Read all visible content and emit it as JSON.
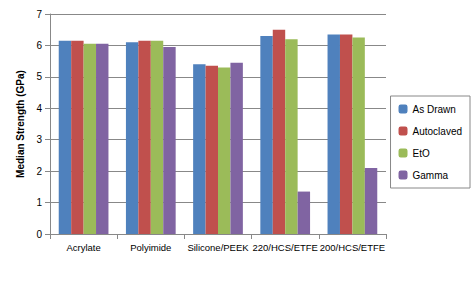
{
  "chart_data": {
    "type": "bar",
    "y_label": "Median Strength (GPa)",
    "categories": [
      "Acrylate",
      "Polyimide",
      "Silicone/PEEK",
      "220/HCS/ETFE",
      "200/HCS/ETFE"
    ],
    "series": [
      {
        "name": "As Drawn",
        "color": "#4f81bd",
        "values": [
          6.15,
          6.1,
          5.4,
          6.3,
          6.35
        ]
      },
      {
        "name": "Autoclaved",
        "color": "#c0504d",
        "values": [
          6.15,
          6.15,
          5.35,
          6.5,
          6.35
        ]
      },
      {
        "name": "EtO",
        "color": "#9bbb59",
        "values": [
          6.05,
          6.15,
          5.3,
          6.2,
          6.25
        ]
      },
      {
        "name": "Gamma",
        "color": "#8064a2",
        "values": [
          6.05,
          5.95,
          5.45,
          1.35,
          2.1
        ]
      }
    ],
    "ylim": [
      0,
      7
    ],
    "yticks": [
      0,
      1,
      2,
      3,
      4,
      5,
      6,
      7
    ],
    "grid": true,
    "legend": "right"
  }
}
